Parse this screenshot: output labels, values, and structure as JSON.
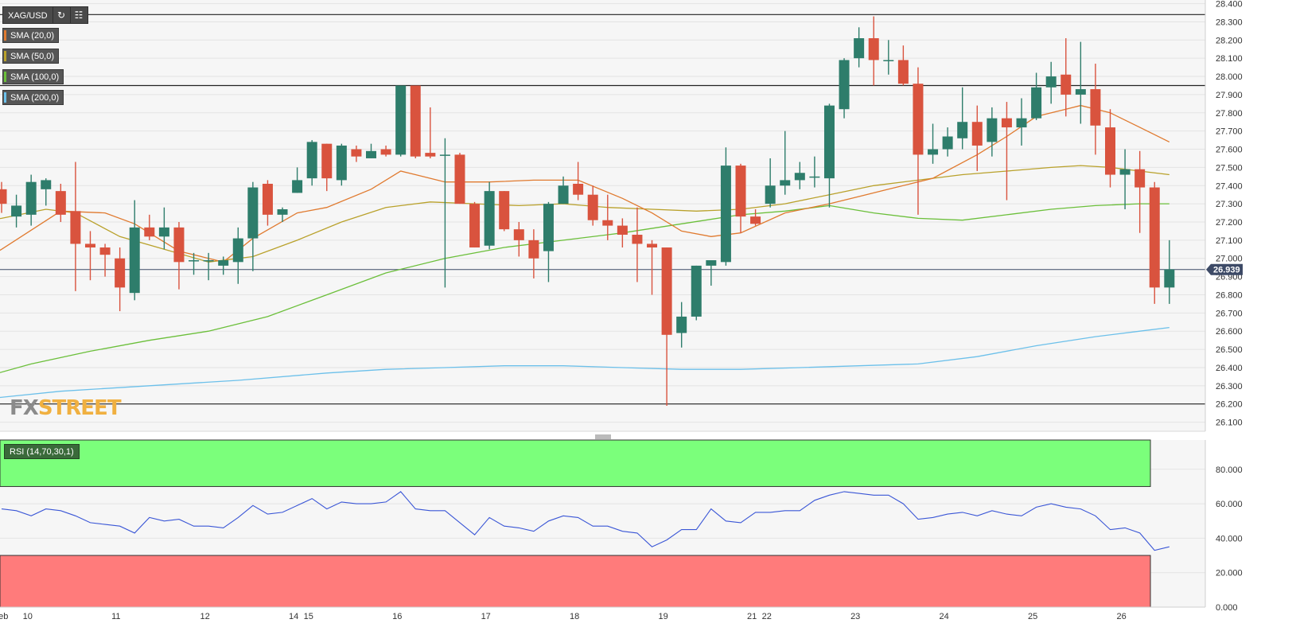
{
  "header": {
    "symbol": "XAG/USD",
    "refresh_icon": "refresh-icon",
    "settings_icon": "chart-settings-icon"
  },
  "indicators": [
    {
      "name": "SMA (20,0)",
      "color": "#e07a2f"
    },
    {
      "name": "SMA (50,0)",
      "color": "#b9a12b"
    },
    {
      "name": "SMA (100,0)",
      "color": "#6bbf3a"
    },
    {
      "name": "SMA (200,0)",
      "color": "#6cc0ea"
    }
  ],
  "rsi_label": "RSI (14,70,30,1)",
  "watermark": {
    "part1": "FX",
    "part2": "STREET"
  },
  "current_price_label": "26.939",
  "colors": {
    "bull": "#2e7d6b",
    "bear": "#d9533e",
    "rsi_line": "#3a56d6",
    "overbought_zone": "#7bff7b",
    "oversold_zone": "#ff7b7b",
    "price_tag": "#3d4a66"
  },
  "chart_data": [
    {
      "type": "candlestick",
      "symbol": "XAG/USD",
      "y_ticks": [
        "28.400",
        "28.300",
        "28.200",
        "28.100",
        "28.000",
        "27.900",
        "27.800",
        "27.700",
        "27.600",
        "27.500",
        "27.400",
        "27.300",
        "27.200",
        "27.100",
        "27.000",
        "26.900",
        "26.800",
        "26.700",
        "26.600",
        "26.500",
        "26.400",
        "26.300",
        "26.200",
        "26.100"
      ],
      "ylim": [
        26.05,
        28.42
      ],
      "x_labels": [
        {
          "label": "Feb",
          "i": -0.3
        },
        {
          "label": "10",
          "i": 1.7
        },
        {
          "label": "11",
          "i": 7.7
        },
        {
          "label": "12",
          "i": 13.7
        },
        {
          "label": "14",
          "i": 19.7
        },
        {
          "label": "15",
          "i": 20.7
        },
        {
          "label": "16",
          "i": 26.7
        },
        {
          "label": "17",
          "i": 32.7
        },
        {
          "label": "18",
          "i": 38.7
        },
        {
          "label": "19",
          "i": 44.7
        },
        {
          "label": "21",
          "i": 50.7
        },
        {
          "label": "22",
          "i": 51.7
        },
        {
          "label": "23",
          "i": 57.7
        },
        {
          "label": "24",
          "i": 63.7
        },
        {
          "label": "25",
          "i": 69.7
        },
        {
          "label": "26",
          "i": 75.7
        }
      ],
      "horizontal_levels": [
        28.34,
        27.95,
        26.2
      ],
      "current_price": 26.939,
      "candles": [
        [
          27.38,
          27.42,
          27.25,
          27.3
        ],
        [
          27.23,
          27.35,
          27.17,
          27.29
        ],
        [
          27.24,
          27.46,
          27.18,
          27.42
        ],
        [
          27.38,
          27.44,
          27.29,
          27.43
        ],
        [
          27.37,
          27.41,
          27.2,
          27.24
        ],
        [
          27.26,
          27.53,
          26.82,
          27.08
        ],
        [
          27.08,
          27.15,
          26.88,
          27.06
        ],
        [
          27.06,
          27.08,
          26.9,
          27.02
        ],
        [
          27.0,
          27.06,
          26.71,
          26.84
        ],
        [
          26.81,
          27.32,
          26.77,
          27.17
        ],
        [
          27.17,
          27.24,
          27.1,
          27.12
        ],
        [
          27.12,
          27.28,
          27.05,
          27.17
        ],
        [
          27.17,
          27.2,
          26.83,
          26.98
        ],
        [
          26.99,
          27.03,
          26.91,
          26.99
        ],
        [
          26.99,
          27.03,
          26.88,
          26.99
        ],
        [
          26.96,
          27.01,
          26.91,
          26.99
        ],
        [
          26.98,
          27.17,
          26.86,
          27.11
        ],
        [
          27.11,
          27.42,
          26.93,
          27.39
        ],
        [
          27.41,
          27.43,
          27.18,
          27.24
        ],
        [
          27.24,
          27.28,
          27.2,
          27.27
        ],
        [
          27.36,
          27.5,
          27.36,
          27.43
        ],
        [
          27.44,
          27.65,
          27.4,
          27.64
        ],
        [
          27.63,
          27.63,
          27.37,
          27.44
        ],
        [
          27.43,
          27.63,
          27.4,
          27.62
        ],
        [
          27.6,
          27.62,
          27.53,
          27.56
        ],
        [
          27.55,
          27.63,
          27.55,
          27.59
        ],
        [
          27.6,
          27.62,
          27.56,
          27.57
        ],
        [
          27.57,
          27.95,
          27.56,
          27.95
        ],
        [
          27.95,
          27.95,
          27.55,
          27.56
        ],
        [
          27.58,
          27.83,
          27.55,
          27.56
        ],
        [
          27.57,
          27.66,
          26.84,
          27.57
        ],
        [
          27.57,
          27.58,
          27.3,
          27.3
        ],
        [
          27.3,
          27.31,
          27.06,
          27.06
        ],
        [
          27.07,
          27.42,
          27.05,
          27.37
        ],
        [
          27.37,
          27.37,
          27.15,
          27.16
        ],
        [
          27.16,
          27.2,
          27.01,
          27.1
        ],
        [
          27.1,
          27.16,
          26.89,
          27.0
        ],
        [
          27.04,
          27.31,
          26.87,
          27.3
        ],
        [
          27.3,
          27.45,
          27.3,
          27.4
        ],
        [
          27.41,
          27.53,
          27.32,
          27.35
        ],
        [
          27.35,
          27.4,
          27.18,
          27.21
        ],
        [
          27.21,
          27.35,
          27.1,
          27.18
        ],
        [
          27.18,
          27.22,
          27.06,
          27.13
        ],
        [
          27.13,
          27.28,
          26.87,
          27.08
        ],
        [
          27.08,
          27.1,
          26.8,
          27.06
        ],
        [
          27.06,
          27.06,
          26.19,
          26.58
        ],
        [
          26.59,
          26.76,
          26.51,
          26.68
        ],
        [
          26.68,
          26.96,
          26.66,
          26.96
        ],
        [
          26.96,
          26.98,
          26.85,
          26.99
        ],
        [
          26.98,
          27.61,
          26.96,
          27.51
        ],
        [
          27.51,
          27.52,
          27.14,
          27.23
        ],
        [
          27.23,
          27.27,
          27.18,
          27.19
        ],
        [
          27.3,
          27.55,
          27.28,
          27.4
        ],
        [
          27.4,
          27.7,
          27.35,
          27.43
        ],
        [
          27.43,
          27.53,
          27.38,
          27.47
        ],
        [
          27.45,
          27.56,
          27.39,
          27.45
        ],
        [
          27.44,
          27.85,
          27.28,
          27.84
        ],
        [
          27.82,
          28.1,
          27.77,
          28.09
        ],
        [
          28.1,
          28.27,
          28.05,
          28.21
        ],
        [
          28.21,
          28.33,
          27.95,
          28.09
        ],
        [
          28.09,
          28.2,
          28.01,
          28.09
        ],
        [
          28.09,
          28.17,
          27.95,
          27.96
        ],
        [
          27.96,
          28.05,
          27.24,
          27.57
        ],
        [
          27.57,
          27.74,
          27.52,
          27.6
        ],
        [
          27.6,
          27.72,
          27.56,
          27.67
        ],
        [
          27.66,
          27.94,
          27.6,
          27.75
        ],
        [
          27.75,
          27.84,
          27.48,
          27.62
        ],
        [
          27.64,
          27.83,
          27.56,
          27.77
        ],
        [
          27.77,
          27.86,
          27.32,
          27.72
        ],
        [
          27.72,
          27.88,
          27.62,
          27.77
        ],
        [
          27.77,
          28.02,
          27.76,
          27.94
        ],
        [
          27.94,
          28.08,
          27.85,
          28.0
        ],
        [
          28.01,
          28.21,
          27.78,
          27.9
        ],
        [
          27.9,
          28.19,
          27.74,
          27.93
        ],
        [
          27.93,
          28.07,
          27.57,
          27.73
        ],
        [
          27.72,
          27.82,
          27.39,
          27.46
        ],
        [
          27.46,
          27.6,
          27.27,
          27.49
        ],
        [
          27.49,
          27.59,
          27.14,
          27.39
        ],
        [
          27.39,
          27.42,
          26.75,
          26.84
        ],
        [
          26.84,
          27.1,
          26.75,
          26.94
        ]
      ],
      "sma20": [
        [
          -2,
          26.95
        ],
        [
          0,
          27.05
        ],
        [
          4,
          27.26
        ],
        [
          7,
          27.25
        ],
        [
          9,
          27.19
        ],
        [
          12,
          27.04
        ],
        [
          15,
          26.98
        ],
        [
          17,
          27.11
        ],
        [
          20,
          27.25
        ],
        [
          22,
          27.28
        ],
        [
          25,
          27.38
        ],
        [
          27,
          27.48
        ],
        [
          28,
          27.46
        ],
        [
          30,
          27.42
        ],
        [
          33,
          27.42
        ],
        [
          36,
          27.43
        ],
        [
          39,
          27.43
        ],
        [
          42,
          27.33
        ],
        [
          44,
          27.25
        ],
        [
          46,
          27.15
        ],
        [
          48,
          27.12
        ],
        [
          50,
          27.14
        ],
        [
          53,
          27.25
        ],
        [
          56,
          27.3
        ],
        [
          58,
          27.34
        ],
        [
          60,
          27.38
        ],
        [
          63,
          27.44
        ],
        [
          66,
          27.57
        ],
        [
          68,
          27.67
        ],
        [
          70,
          27.78
        ],
        [
          72,
          27.82
        ],
        [
          73,
          27.84
        ],
        [
          75,
          27.8
        ],
        [
          77,
          27.72
        ],
        [
          79,
          27.64
        ]
      ],
      "sma50": [
        [
          -2,
          27.2
        ],
        [
          0,
          27.22
        ],
        [
          3,
          27.27
        ],
        [
          5,
          27.25
        ],
        [
          8,
          27.12
        ],
        [
          11,
          27.05
        ],
        [
          14,
          26.98
        ],
        [
          17,
          27.01
        ],
        [
          20,
          27.1
        ],
        [
          23,
          27.2
        ],
        [
          26,
          27.28
        ],
        [
          29,
          27.31
        ],
        [
          32,
          27.3
        ],
        [
          35,
          27.29
        ],
        [
          38,
          27.3
        ],
        [
          41,
          27.28
        ],
        [
          44,
          27.27
        ],
        [
          47,
          27.26
        ],
        [
          50,
          27.27
        ],
        [
          53,
          27.3
        ],
        [
          56,
          27.35
        ],
        [
          59,
          27.4
        ],
        [
          62,
          27.43
        ],
        [
          65,
          27.46
        ],
        [
          68,
          27.48
        ],
        [
          71,
          27.5
        ],
        [
          73,
          27.51
        ],
        [
          75,
          27.5
        ],
        [
          77,
          27.48
        ],
        [
          79,
          27.46
        ]
      ],
      "sma100": [
        [
          -2,
          26.33
        ],
        [
          2,
          26.42
        ],
        [
          6,
          26.49
        ],
        [
          10,
          26.55
        ],
        [
          14,
          26.6
        ],
        [
          18,
          26.68
        ],
        [
          22,
          26.8
        ],
        [
          26,
          26.92
        ],
        [
          30,
          27.0
        ],
        [
          34,
          27.06
        ],
        [
          38,
          27.1
        ],
        [
          42,
          27.14
        ],
        [
          46,
          27.19
        ],
        [
          50,
          27.24
        ],
        [
          53,
          27.26
        ],
        [
          56,
          27.29
        ],
        [
          59,
          27.25
        ],
        [
          62,
          27.22
        ],
        [
          65,
          27.21
        ],
        [
          68,
          27.24
        ],
        [
          71,
          27.27
        ],
        [
          74,
          27.29
        ],
        [
          77,
          27.3
        ],
        [
          79,
          27.3
        ]
      ],
      "sma200": [
        [
          -2,
          26.22
        ],
        [
          4,
          26.27
        ],
        [
          10,
          26.3
        ],
        [
          16,
          26.33
        ],
        [
          22,
          26.37
        ],
        [
          26,
          26.39
        ],
        [
          30,
          26.4
        ],
        [
          34,
          26.41
        ],
        [
          38,
          26.41
        ],
        [
          42,
          26.4
        ],
        [
          46,
          26.39
        ],
        [
          50,
          26.39
        ],
        [
          54,
          26.4
        ],
        [
          58,
          26.41
        ],
        [
          62,
          26.42
        ],
        [
          66,
          26.46
        ],
        [
          70,
          26.52
        ],
        [
          74,
          26.57
        ],
        [
          77,
          26.6
        ],
        [
          79,
          26.62
        ]
      ]
    },
    {
      "type": "line",
      "name": "RSI (14,70,30,1)",
      "y_ticks": [
        "80.000",
        "60.000",
        "40.000",
        "20.000",
        "0.000"
      ],
      "ylim": [
        0,
        97
      ],
      "overbought": 70,
      "oversold": 30,
      "values": [
        57,
        56,
        53,
        57,
        56,
        53,
        49,
        48,
        47,
        43,
        52,
        50,
        51,
        47,
        47,
        46,
        52,
        59,
        54,
        55,
        59,
        63,
        57,
        61,
        60,
        60,
        61,
        67,
        57,
        56,
        56,
        49,
        42,
        52,
        47,
        46,
        44,
        50,
        53,
        52,
        47,
        47,
        44,
        43,
        35,
        39,
        45,
        45,
        57,
        50,
        49,
        55,
        55,
        56,
        56,
        62,
        65,
        67,
        66,
        65,
        65,
        60,
        51,
        52,
        54,
        55,
        53,
        56,
        54,
        53,
        58,
        60,
        58,
        57,
        53,
        45,
        46,
        43,
        33,
        35
      ],
      "x_offset": -2
    }
  ]
}
